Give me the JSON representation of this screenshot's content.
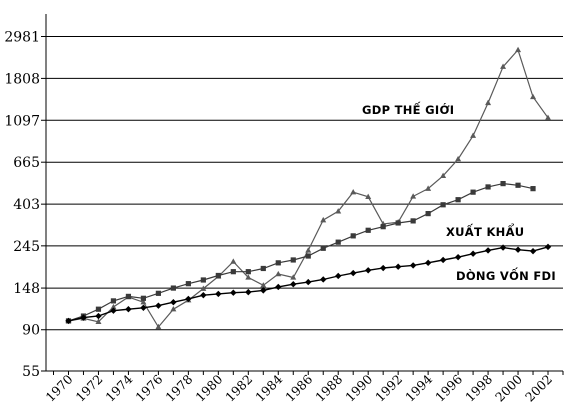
{
  "chart_data": {
    "type": "line",
    "title": "",
    "xlabel": "",
    "ylabel": "",
    "yscale": "log",
    "ylim": [
      55,
      3900
    ],
    "xlim": [
      1968.5,
      2003
    ],
    "grid": "horizontal",
    "legend": "inline labels",
    "yticks": [
      "2981",
      "1808",
      "1097",
      "665",
      "403",
      "245",
      "148",
      "90",
      "55"
    ],
    "xticks": [
      "1970",
      "1972",
      "1974",
      "1976",
      "1978",
      "1980",
      "1982",
      "1984",
      "1986",
      "1988",
      "1990",
      "1992",
      "1994",
      "1996",
      "1998",
      "2000",
      "2002"
    ],
    "series": [
      {
        "name": "GDP THẾ GIỚI",
        "color": "#5a5a5a",
        "marker": "triangle",
        "x": [
          1970,
          1971,
          1972,
          1973,
          1974,
          1975,
          1976,
          1977,
          1978,
          1979,
          1980,
          1981,
          1982,
          1983,
          1984,
          1985,
          1986,
          1987,
          1988,
          1989,
          1990,
          1991,
          1992,
          1993,
          1994,
          1995,
          1996,
          1997,
          1998,
          1999,
          2000,
          2001,
          2002
        ],
        "y": [
          100,
          103,
          99,
          118,
          133,
          125,
          93,
          115,
          128,
          147,
          170,
          203,
          168,
          153,
          175,
          168,
          232,
          333,
          370,
          465,
          440,
          318,
          325,
          442,
          485,
          565,
          690,
          912,
          1350,
          2080,
          2540,
          1450,
          1130
        ]
      },
      {
        "name": "XUẤT KHẨU",
        "color": "#3a3a3a",
        "marker": "square",
        "x": [
          1970,
          1971,
          1972,
          1973,
          1974,
          1975,
          1976,
          1977,
          1978,
          1979,
          1980,
          1981,
          1982,
          1983,
          1984,
          1985,
          1986,
          1987,
          1988,
          1989,
          1990,
          1991,
          1992,
          1993,
          1994,
          1995,
          1996,
          1997,
          1998,
          1999,
          2000,
          2001
        ],
        "y": [
          100,
          106,
          115,
          127,
          134,
          131,
          139,
          148,
          156,
          163,
          172,
          180,
          180,
          187,
          200,
          207,
          217,
          238,
          256,
          276,
          295,
          308,
          322,
          330,
          360,
          400,
          425,
          465,
          495,
          515,
          505,
          485
        ]
      },
      {
        "name": "DÒNG VỐN FDI",
        "color": "#000000",
        "marker": "diamond",
        "x": [
          1970,
          1971,
          1972,
          1973,
          1974,
          1975,
          1976,
          1977,
          1978,
          1979,
          1980,
          1981,
          1982,
          1983,
          1984,
          1985,
          1986,
          1987,
          1988,
          1989,
          1990,
          1991,
          1992,
          1993,
          1994,
          1995,
          1996,
          1997,
          1998,
          1999,
          2000,
          2001,
          2002
        ],
        "y": [
          100,
          104,
          106,
          113,
          115,
          117,
          120,
          125,
          130,
          136,
          138,
          140,
          141,
          144,
          150,
          155,
          159,
          164,
          171,
          177,
          183,
          188,
          191,
          194,
          200,
          207,
          214,
          223,
          232,
          240,
          234,
          230,
          242
        ]
      }
    ]
  }
}
